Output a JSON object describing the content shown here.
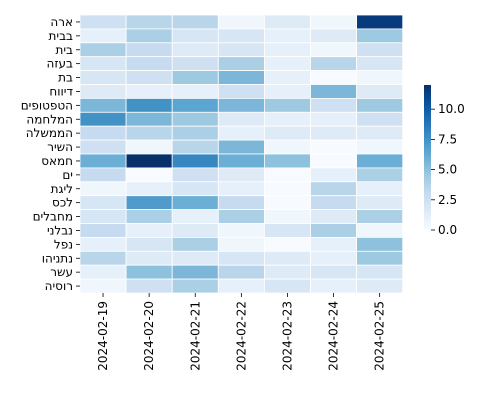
{
  "chart_data": {
    "type": "heatmap",
    "rows": [
      "ארה",
      "בבית",
      "בית",
      "בעזה",
      "בת",
      "דיווח",
      "הטפטופים",
      "המלחמה",
      "הממשלה",
      "השיר",
      "חמאס",
      "ים",
      "ליגת",
      "לכס",
      "מחבלים",
      "נבלני",
      "נפל",
      "נתניהו",
      "עשר",
      "רוסיה"
    ],
    "columns": [
      "2024-02-19",
      "2024-02-20",
      "2024-02-21",
      "2024-02-22",
      "2024-02-23",
      "2024-02-24",
      "2024-02-25"
    ],
    "values": [
      [
        2.5,
        3.5,
        3.5,
        0.5,
        1.5,
        0.5,
        11.5
      ],
      [
        1.0,
        4.0,
        2.0,
        2.0,
        1.0,
        1.5,
        4.5
      ],
      [
        4.0,
        3.0,
        1.5,
        2.0,
        1.0,
        0.5,
        2.5
      ],
      [
        2.0,
        3.0,
        2.5,
        4.0,
        1.0,
        3.5,
        2.0
      ],
      [
        2.0,
        2.5,
        4.5,
        5.5,
        1.0,
        0.0,
        0.5
      ],
      [
        1.5,
        1.0,
        1.0,
        2.5,
        1.0,
        5.5,
        1.5
      ],
      [
        5.5,
        7.5,
        6.5,
        5.5,
        4.5,
        2.5,
        4.5
      ],
      [
        7.5,
        5.5,
        4.5,
        1.5,
        1.0,
        1.0,
        2.5
      ],
      [
        3.0,
        3.5,
        4.0,
        1.0,
        1.5,
        1.5,
        1.5
      ],
      [
        2.5,
        0.5,
        3.5,
        5.5,
        0.5,
        0.0,
        0.5
      ],
      [
        6.0,
        12.0,
        8.0,
        6.0,
        5.0,
        0.0,
        6.0
      ],
      [
        3.0,
        0.0,
        2.5,
        1.5,
        0.0,
        1.0,
        4.0
      ],
      [
        0.5,
        1.0,
        2.0,
        1.0,
        0.0,
        3.5,
        1.0
      ],
      [
        2.0,
        7.0,
        6.0,
        3.0,
        0.0,
        3.0,
        1.5
      ],
      [
        2.0,
        4.0,
        1.0,
        4.0,
        0.5,
        1.5,
        4.0
      ],
      [
        3.0,
        1.0,
        1.5,
        0.5,
        2.0,
        4.0,
        0.5
      ],
      [
        1.0,
        2.0,
        4.0,
        0.5,
        0.0,
        1.0,
        5.0
      ],
      [
        3.5,
        1.5,
        1.5,
        2.0,
        1.5,
        1.0,
        4.5
      ],
      [
        1.0,
        5.0,
        5.5,
        3.5,
        1.5,
        2.0,
        2.0
      ],
      [
        0.5,
        2.5,
        4.0,
        1.0,
        2.0,
        1.0,
        1.5
      ]
    ],
    "vmin": 0,
    "vmax": 12,
    "colorbar_ticks": [
      "0.0",
      "2.5",
      "5.0",
      "7.5",
      "10.0"
    ],
    "colormap": "Blues",
    "grid": true,
    "title": "",
    "xlabel": "",
    "ylabel": ""
  }
}
